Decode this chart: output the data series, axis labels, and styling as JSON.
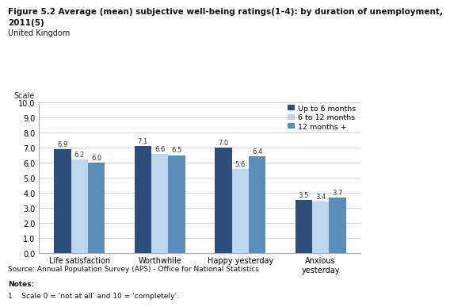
{
  "title_line1": "Figure 5.2 Average (mean) subjective well-being ratings(1–4): by duration of unemployment,",
  "title_line2": "2011(5)",
  "subtitle": "United Kingdom",
  "ylabel": "Scale",
  "categories": [
    "Life satisfaction",
    "Worthwhile",
    "Happy yesterday",
    "Anxious\nyesterday"
  ],
  "series": [
    {
      "label": "Up to 6 months",
      "values": [
        6.9,
        7.1,
        7.0,
        3.5
      ],
      "color": "#2E4D7B"
    },
    {
      "label": "6 to 12 months",
      "values": [
        6.2,
        6.6,
        5.6,
        3.4
      ],
      "color": "#BDD7EE"
    },
    {
      "label": "12 months +",
      "values": [
        6.0,
        6.5,
        6.4,
        3.7
      ],
      "color": "#5B8DB8"
    }
  ],
  "ylim": [
    0,
    10.0
  ],
  "yticks": [
    0.0,
    1.0,
    2.0,
    3.0,
    4.0,
    5.0,
    6.0,
    7.0,
    8.0,
    9.0,
    10.0
  ],
  "source": "Source: Annual Population Survey (APS) - Office for National Statistics",
  "notes_title": "Notes:",
  "notes": [
    "Scale 0 = ‘not at all’ and 10 = ‘completely’."
  ],
  "background_color": "#FFFFFF",
  "bar_width": 0.21,
  "label_fontsize": 6.0,
  "axis_fontsize": 7.0,
  "title_fontsize": 7.5,
  "legend_fontsize": 6.8
}
